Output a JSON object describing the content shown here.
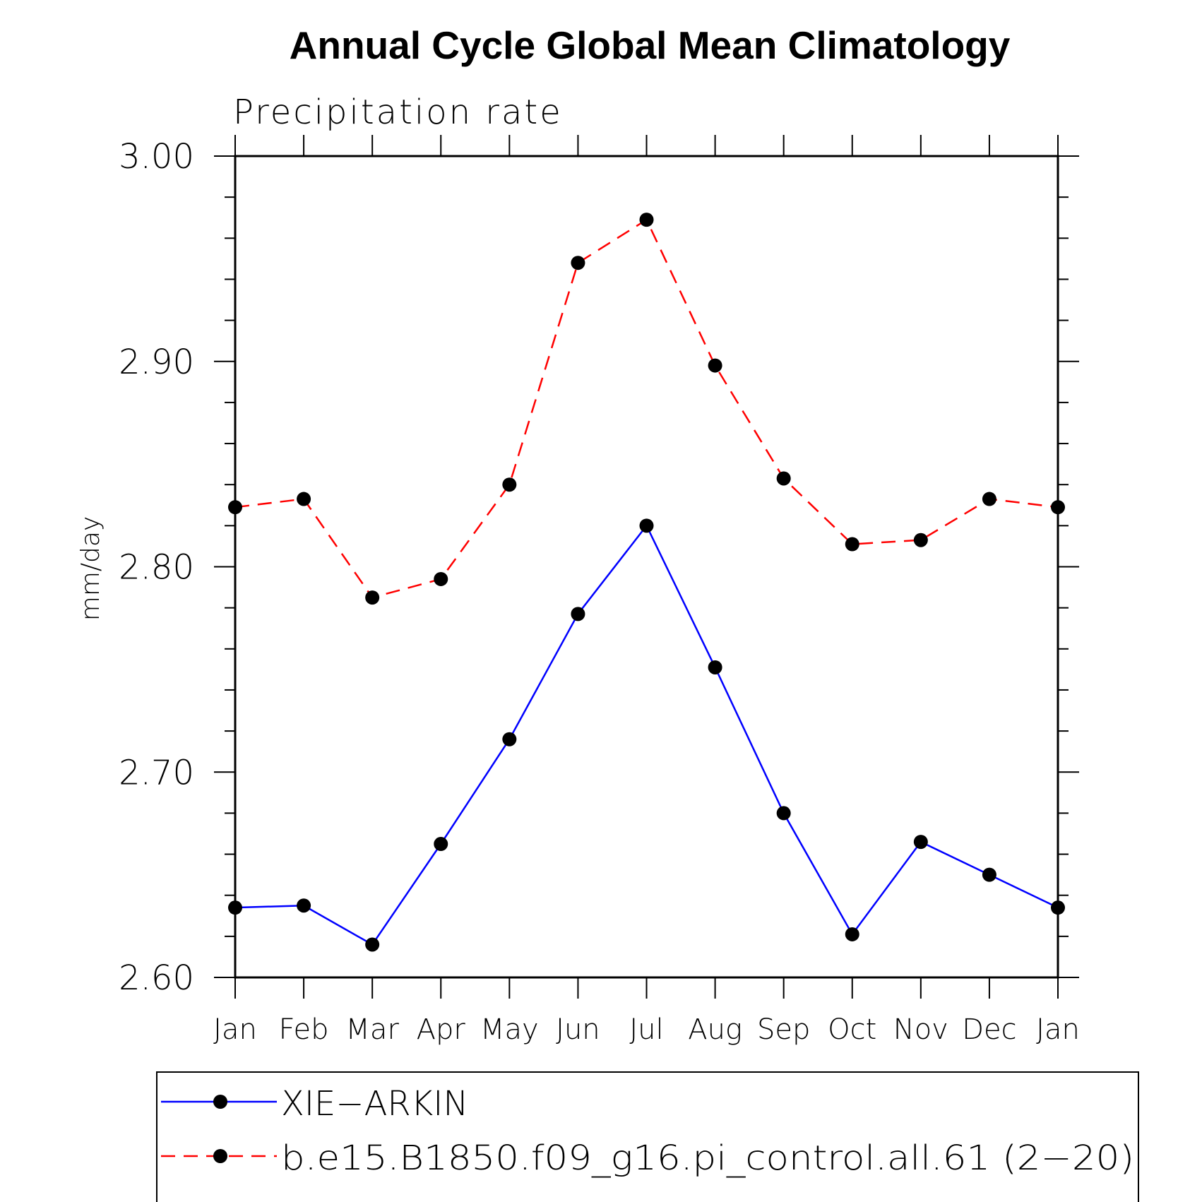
{
  "chart_data": {
    "type": "line",
    "title": "Annual Cycle Global Mean Climatology",
    "subtitle": "Precipitation rate",
    "xlabel": "",
    "ylabel": "mm/day",
    "categories": [
      "Jan",
      "Feb",
      "Mar",
      "Apr",
      "May",
      "Jun",
      "Jul",
      "Aug",
      "Sep",
      "Oct",
      "Nov",
      "Dec",
      "Jan"
    ],
    "ylim": [
      2.6,
      3.0
    ],
    "yticks": [
      "2.60",
      "2.70",
      "2.80",
      "2.90",
      "3.00"
    ],
    "grid": false,
    "legend_position": "bottom",
    "series": [
      {
        "name": "XIE−ARKIN",
        "color": "#0000ff",
        "dash": "solid",
        "marker": "circle",
        "values": [
          2.634,
          2.635,
          2.616,
          2.665,
          2.716,
          2.777,
          2.82,
          2.751,
          2.68,
          2.621,
          2.666,
          2.65,
          2.634
        ]
      },
      {
        "name": "b.e15.B1850.f09_g16.pi_control.all.61 (2−20)",
        "color": "#ff0000",
        "dash": "dashed",
        "marker": "circle",
        "values": [
          2.829,
          2.833,
          2.785,
          2.794,
          2.84,
          2.948,
          2.969,
          2.898,
          2.843,
          2.811,
          2.813,
          2.833,
          2.829
        ]
      }
    ]
  }
}
